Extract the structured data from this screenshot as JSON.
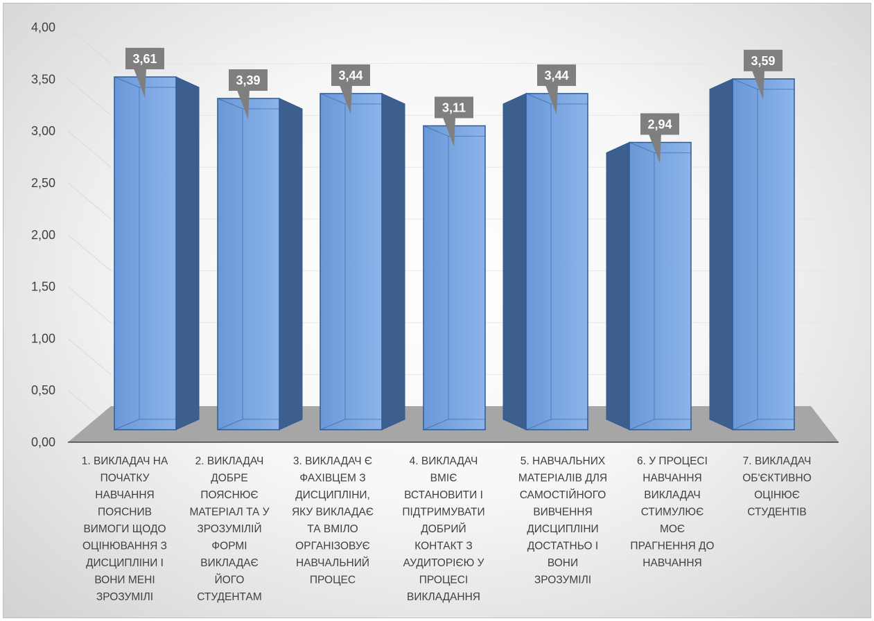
{
  "chart_data": {
    "type": "bar",
    "style": "3d-column",
    "categories": [
      [
        "1. ВИКЛАДАЧ НА",
        "ПОЧАТКУ",
        "НАВЧАННЯ",
        "ПОЯСНИВ",
        "ВИМОГИ ЩОДО",
        "ОЦІНЮВАННЯ З",
        "ДИСЦИПЛІНИ І",
        "ВОНИ МЕНІ",
        "ЗРОЗУМІЛІ"
      ],
      [
        "2. ВИКЛАДАЧ",
        "ДОБРЕ",
        "ПОЯСНЮЄ",
        "МАТЕРІАЛ ТА У",
        "ЗРОЗУМІЛІЙ",
        "ФОРМІ",
        "ВИКЛАДАЄ",
        "ЙОГО",
        "СТУДЕНТАМ"
      ],
      [
        "3. ВИКЛАДАЧ Є",
        "ФАХІВЦЕМ З",
        "ДИСЦИПЛІНИ,",
        "ЯКУ ВИКЛАДАЄ",
        "ТА ВМІЛО",
        "ОРГАНІЗОВУЄ",
        "НАВЧАЛЬНИЙ",
        "ПРОЦЕС"
      ],
      [
        "4. ВИКЛАДАЧ",
        "ВМІЄ",
        "ВСТАНОВИТИ І",
        "ПІДТРИМУВАТИ",
        "ДОБРИЙ",
        "КОНТАКТ З",
        "АУДИТОРІЄЮ У",
        "ПРОЦЕСІ",
        "ВИКЛАДАННЯ"
      ],
      [
        "5. НАВЧАЛЬНИХ",
        "МАТЕРІАЛІВ ДЛЯ",
        "САМОСТІЙНОГО",
        "ВИВЧЕННЯ",
        "ДИСЦИПЛІНИ",
        "ДОСТАТНЬО І",
        "ВОНИ",
        "ЗРОЗУМІЛІ"
      ],
      [
        "6.  У ПРОЦЕСІ",
        "НАВЧАННЯ",
        "ВИКЛАДАЧ",
        "СТИМУЛЮЄ",
        "МОЄ",
        "ПРАГНЕННЯ ДО",
        "НАВЧАННЯ"
      ],
      [
        "7. ВИКЛАДАЧ",
        "ОБ'ЄКТИВНО",
        "ОЦІНЮЄ",
        "СТУДЕНТІВ"
      ]
    ],
    "values": [
      3.61,
      3.39,
      3.44,
      3.11,
      3.44,
      2.94,
      3.59
    ],
    "value_labels": [
      "3,61",
      "3,39",
      "3,44",
      "3,11",
      "3,44",
      "2,94",
      "3,59"
    ],
    "yticks": [
      "0,00",
      "0,50",
      "1,00",
      "1,50",
      "2,00",
      "2,50",
      "3,00",
      "3,50",
      "4,00"
    ],
    "ylim": [
      0,
      4
    ],
    "grid": true,
    "legend": false,
    "colors": {
      "bar_front": "#6a98d8",
      "bar_front_light": "#8cb4ea",
      "bar_side": "#3d5f8e",
      "bar_top": "#7faae0",
      "bar_edge": "#2e5a94",
      "floor": "#a6a6a6",
      "label_box": "#7f7f7f",
      "text": "#404040"
    }
  }
}
